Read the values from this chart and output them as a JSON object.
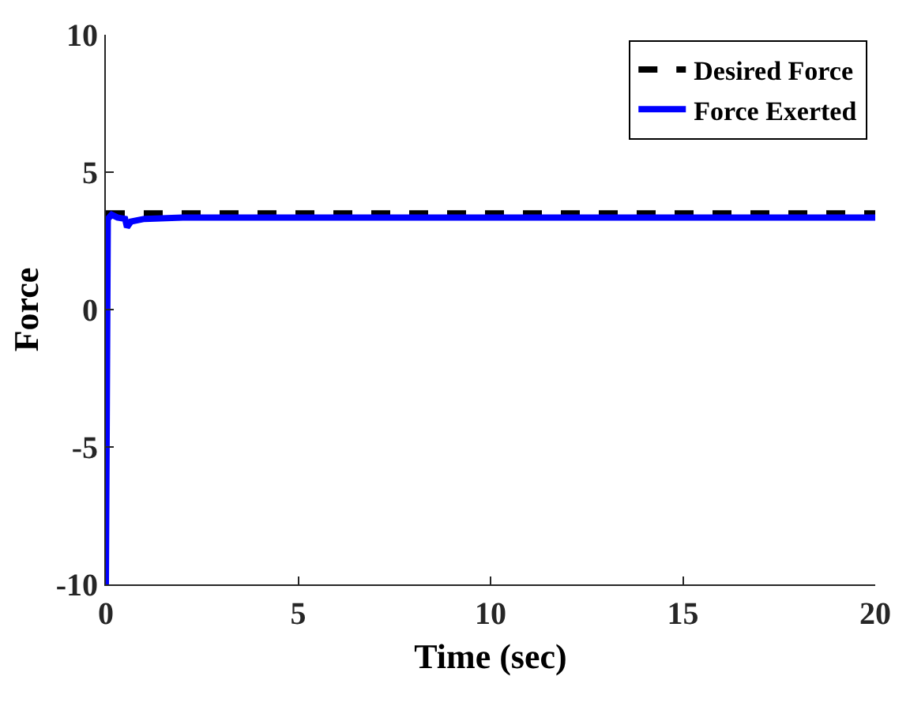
{
  "chart_data": {
    "type": "line",
    "xlabel": "Time (sec)",
    "ylabel": "Force",
    "xlim": [
      0,
      20
    ],
    "ylim": [
      -10,
      10
    ],
    "xticks": [
      0,
      5,
      10,
      15,
      20
    ],
    "yticks": [
      10,
      5,
      0,
      -5,
      -10
    ],
    "legend": "top right",
    "marker": "none",
    "series": [
      {
        "name": "Desired Force",
        "color": "#000000",
        "line_style": "dashed",
        "x": [
          0,
          20
        ],
        "values": [
          3.5,
          3.5
        ]
      },
      {
        "name": "Force Exerted",
        "color": "#0000ff",
        "line_style": "solid",
        "x": [
          0,
          0.05,
          0.15,
          0.3,
          0.5,
          0.55,
          0.65,
          1,
          2,
          20
        ],
        "values": [
          -10,
          3.3,
          3.45,
          3.35,
          3.3,
          3.0,
          3.2,
          3.3,
          3.35,
          3.35
        ]
      }
    ]
  }
}
